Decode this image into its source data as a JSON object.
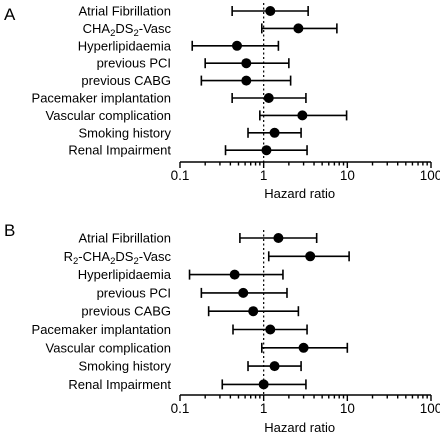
{
  "chart_data": [
    {
      "type": "forest",
      "panel": "A",
      "categories": [
        [
          "Atrial Fibrillation"
        ],
        [
          "CHA",
          "2",
          "DS",
          "2",
          "-Vasc"
        ],
        [
          "Hyperlipidaemia"
        ],
        [
          "previous PCI"
        ],
        [
          "previous CABG"
        ],
        [
          "Pacemaker implantation"
        ],
        [
          "Vascular complication"
        ],
        [
          "Smoking history"
        ],
        [
          "Renal Impairment"
        ]
      ],
      "hazard_ratio": [
        1.2,
        2.6,
        0.48,
        0.62,
        0.62,
        1.15,
        2.9,
        1.35,
        1.08
      ],
      "ci_lower": [
        0.42,
        0.95,
        0.14,
        0.2,
        0.18,
        0.42,
        0.9,
        0.65,
        0.35
      ],
      "ci_upper": [
        3.4,
        7.5,
        1.5,
        2.0,
        2.1,
        3.2,
        9.8,
        2.8,
        3.3
      ],
      "xlabel": "Hazard ratio",
      "x_scale": "log",
      "xlim": [
        0.1,
        100
      ],
      "xticks": [
        "0.1",
        "1",
        "10",
        "100"
      ],
      "reference_line": 1
    },
    {
      "type": "forest",
      "panel": "B",
      "categories": [
        [
          "Atrial Fibrillation"
        ],
        [
          "R",
          "2",
          "-CHA",
          "2",
          "DS",
          "2",
          "-Vasc"
        ],
        [
          "Hyperlipidaemia"
        ],
        [
          "previous PCI"
        ],
        [
          "previous CABG"
        ],
        [
          "Pacemaker implantation"
        ],
        [
          "Vascular complication"
        ],
        [
          "Smoking history"
        ],
        [
          "Renal Impairment"
        ]
      ],
      "hazard_ratio": [
        1.5,
        3.6,
        0.45,
        0.57,
        0.75,
        1.2,
        3.0,
        1.35,
        1.0
      ],
      "ci_lower": [
        0.52,
        1.15,
        0.13,
        0.18,
        0.22,
        0.43,
        0.95,
        0.65,
        0.32
      ],
      "ci_upper": [
        4.3,
        10.5,
        1.7,
        1.9,
        2.6,
        3.3,
        10.0,
        2.8,
        3.2
      ],
      "xlabel": "Hazard ratio",
      "x_scale": "log",
      "xlim": [
        0.1,
        100
      ],
      "xticks": [
        "0.1",
        "1",
        "10",
        "100"
      ],
      "reference_line": 1
    }
  ]
}
